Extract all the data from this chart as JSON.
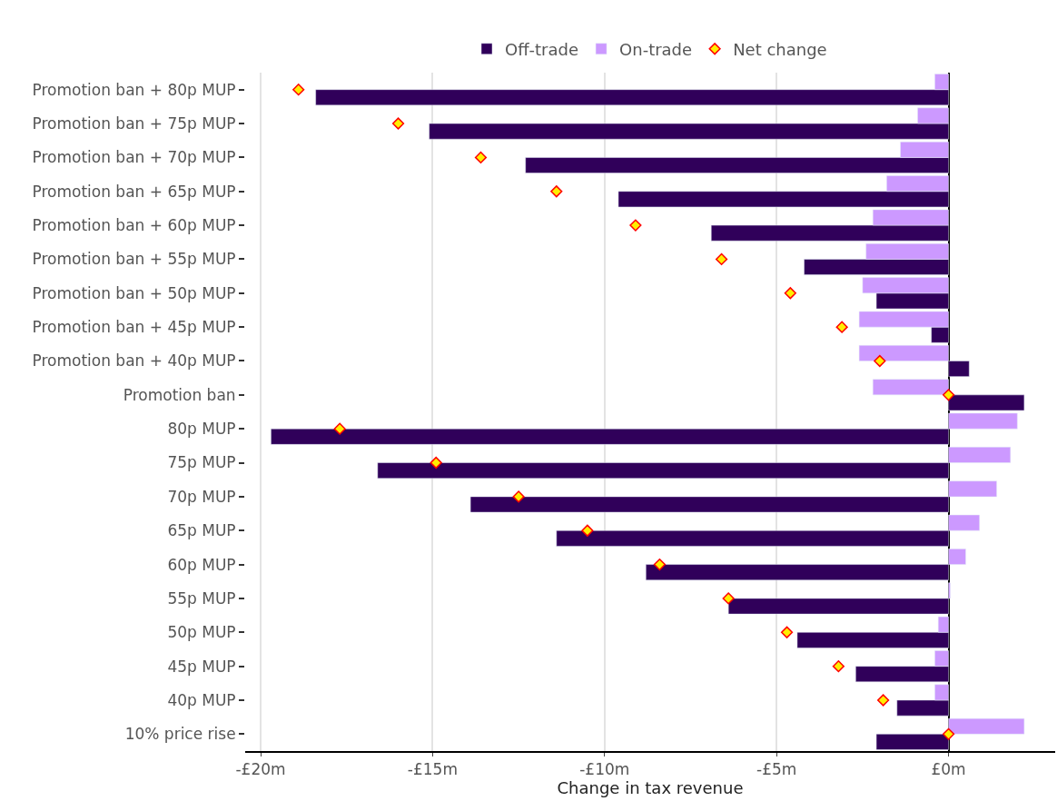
{
  "chart_data": {
    "type": "bar",
    "orientation": "horizontal",
    "xlabel": "Change in tax revenue",
    "categories": [
      "Promotion ban + 80p MUP",
      "Promotion ban + 75p MUP",
      "Promotion ban + 70p MUP",
      "Promotion ban + 65p MUP",
      "Promotion ban + 60p MUP",
      "Promotion ban + 55p MUP",
      "Promotion ban + 50p MUP",
      "Promotion ban + 45p MUP",
      "Promotion ban + 40p MUP",
      "Promotion ban",
      "80p MUP",
      "75p MUP",
      "70p MUP",
      "65p MUP",
      "60p MUP",
      "55p MUP",
      "50p MUP",
      "45p MUP",
      "40p MUP",
      "10% price rise"
    ],
    "series": [
      {
        "name": "Off-trade",
        "color": "#30005a",
        "values": [
          -18.4,
          -15.1,
          -12.3,
          -9.6,
          -6.9,
          -4.2,
          -2.1,
          -0.5,
          0.6,
          2.2,
          -19.7,
          -16.6,
          -13.9,
          -11.4,
          -8.8,
          -6.4,
          -4.4,
          -2.7,
          -1.5,
          -2.1
        ]
      },
      {
        "name": "On-trade",
        "color": "#cc99ff",
        "values": [
          -0.4,
          -0.9,
          -1.4,
          -1.8,
          -2.2,
          -2.4,
          -2.5,
          -2.6,
          -2.6,
          -2.2,
          2.0,
          1.8,
          1.4,
          0.9,
          0.5,
          0.05,
          -0.3,
          -0.4,
          -0.4,
          2.2
        ]
      },
      {
        "name": "Net change",
        "type": "scatter",
        "marker": "diamond",
        "color": "#ffee00",
        "values": [
          -18.9,
          -16.0,
          -13.6,
          -11.4,
          -9.1,
          -6.6,
          -4.6,
          -3.1,
          -2.0,
          0.0,
          -17.7,
          -14.9,
          -12.5,
          -10.5,
          -8.4,
          -6.4,
          -4.7,
          -3.2,
          -1.9,
          0.0
        ]
      }
    ],
    "xlim": [
      -20.45,
      3.1
    ],
    "xticks": [
      {
        "value": -20,
        "label": "-£20m"
      },
      {
        "value": -15,
        "label": "-£15m"
      },
      {
        "value": -10,
        "label": "-£10m"
      },
      {
        "value": -5,
        "label": "-£5m"
      },
      {
        "value": 0,
        "label": "£0m"
      }
    ],
    "grid": "x",
    "legend": "top"
  }
}
